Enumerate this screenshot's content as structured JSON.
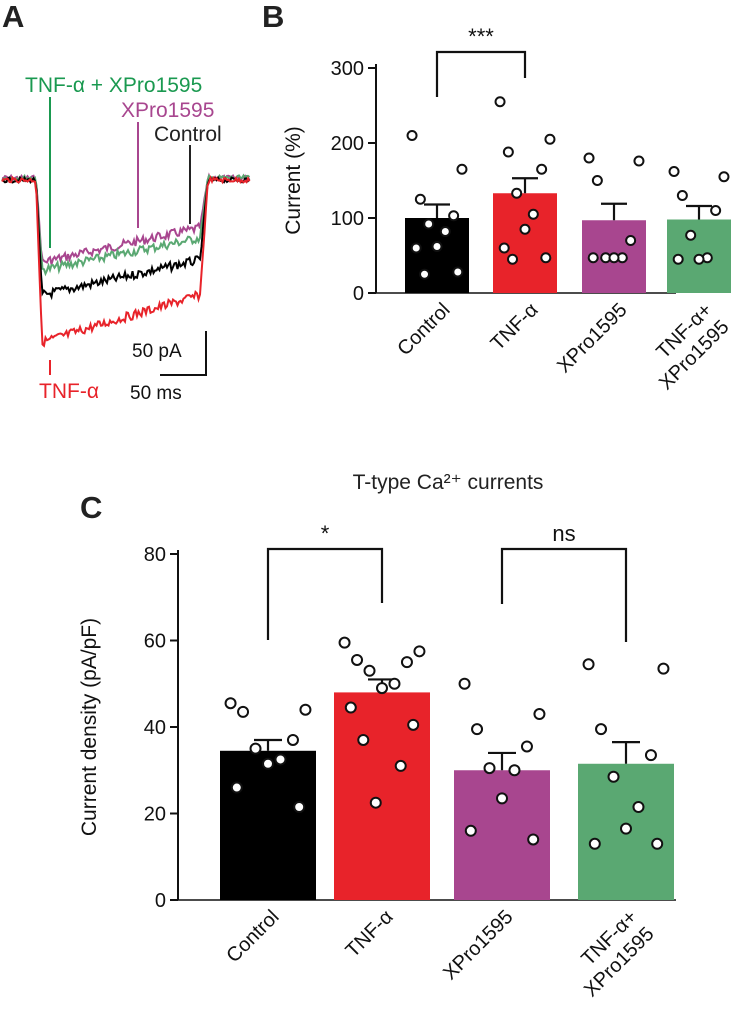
{
  "panels": {
    "a": "A",
    "b": "B",
    "c": "C"
  },
  "traces": {
    "labels": [
      {
        "text": "TNF-α + XPro1595",
        "color": "#1a9950"
      },
      {
        "text": "XPro1595",
        "color": "#a8468f"
      },
      {
        "text": "Control",
        "color": "#222222"
      },
      {
        "text": "TNF-α",
        "color": "#e8232a"
      }
    ],
    "scale_current": "50 pA",
    "scale_time": "50 ms"
  },
  "chart_data": [
    {
      "type": "bar",
      "panel": "B",
      "title": "",
      "xlabel": "",
      "ylabel": "Current (%)",
      "ylim": [
        0,
        300
      ],
      "yticks": [
        0,
        100,
        200,
        300
      ],
      "categories": [
        "Control",
        "TNF-α",
        "XPro1595",
        "TNF-α+\nXPro1595"
      ],
      "colors": [
        "#000000",
        "#e8232a",
        "#a8468f",
        "#5aa872"
      ],
      "values": [
        100,
        133,
        97,
        98
      ],
      "sem": [
        18,
        20,
        22,
        18
      ],
      "points": [
        [
          210,
          165,
          125,
          103,
          92,
          82,
          62,
          60,
          28,
          25
        ],
        [
          255,
          205,
          188,
          165,
          133,
          105,
          85,
          60,
          47,
          45
        ],
        [
          180,
          176,
          150,
          70,
          47,
          47,
          47,
          47
        ],
        [
          162,
          155,
          130,
          110,
          77,
          47,
          45,
          45
        ]
      ],
      "significance": [
        {
          "from": 0,
          "to": 1,
          "label": "***"
        }
      ],
      "legend": "none",
      "grid": false
    },
    {
      "type": "bar",
      "panel": "C",
      "title": "T-type Ca²⁺ currents",
      "xlabel": "",
      "ylabel": "Current density (pA/pF)",
      "ylim": [
        0,
        80
      ],
      "yticks": [
        0,
        20,
        40,
        60,
        80
      ],
      "categories": [
        "Control",
        "TNF-α",
        "XPro1595",
        "TNF-α+\nXPro1595"
      ],
      "colors": [
        "#000000",
        "#e8232a",
        "#a8468f",
        "#5aa872"
      ],
      "values": [
        34.5,
        48,
        30,
        31.5
      ],
      "sem": [
        2.5,
        3,
        4,
        5
      ],
      "points": [
        [
          45.5,
          44,
          43.5,
          37,
          35,
          32.5,
          31.5,
          26,
          21.5
        ],
        [
          59.5,
          57.5,
          55.5,
          55,
          53,
          50,
          49,
          44.5,
          40.5,
          37,
          31,
          22.5
        ],
        [
          50,
          43,
          39.5,
          35.5,
          30.5,
          30,
          23.5,
          16,
          14
        ],
        [
          54.5,
          53.5,
          39.5,
          33.5,
          28.5,
          21.5,
          16.5,
          13,
          13
        ]
      ],
      "significance": [
        {
          "from": 0,
          "to": 1,
          "label": "*"
        },
        {
          "from": 2,
          "to": 3,
          "label": "ns"
        }
      ],
      "legend": "none",
      "grid": false
    }
  ]
}
